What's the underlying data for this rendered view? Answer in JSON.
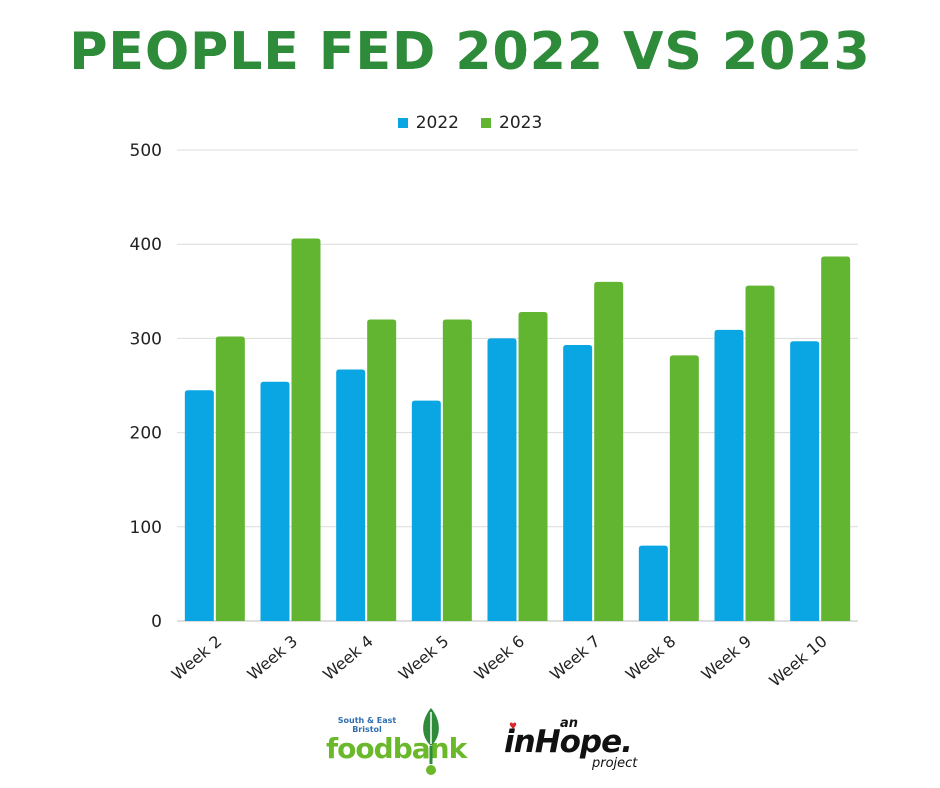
{
  "title": "PEOPLE FED 2022 VS 2023",
  "colors": {
    "title": "#2e8b3a",
    "series_2022": "#0aa6e3",
    "series_2023": "#62b530",
    "grid": "#dcdcdc"
  },
  "chart_data": {
    "type": "bar",
    "title": "PEOPLE FED 2022 VS 2023",
    "xlabel": "",
    "ylabel": "",
    "ylim": [
      0,
      500
    ],
    "yticks": [
      0,
      100,
      200,
      300,
      400,
      500
    ],
    "grid": true,
    "legend_position": "top-center",
    "categories": [
      "Week 2",
      "Week 3",
      "Week 4",
      "Week 5",
      "Week 6",
      "Week 7",
      "Week 8",
      "Week 9",
      "Week 10"
    ],
    "series": [
      {
        "name": "2022",
        "color": "#0aa6e3",
        "values": [
          245,
          254,
          267,
          234,
          300,
          293,
          80,
          309,
          297
        ]
      },
      {
        "name": "2023",
        "color": "#62b530",
        "values": [
          302,
          406,
          320,
          320,
          328,
          360,
          282,
          356,
          387
        ]
      }
    ]
  },
  "logos": {
    "foodbank": {
      "small_text_1": "South & East",
      "small_text_2": "Bristol",
      "word": "foodbank"
    },
    "inhope": {
      "an": "an",
      "word": "inHope.",
      "project": "project"
    }
  }
}
